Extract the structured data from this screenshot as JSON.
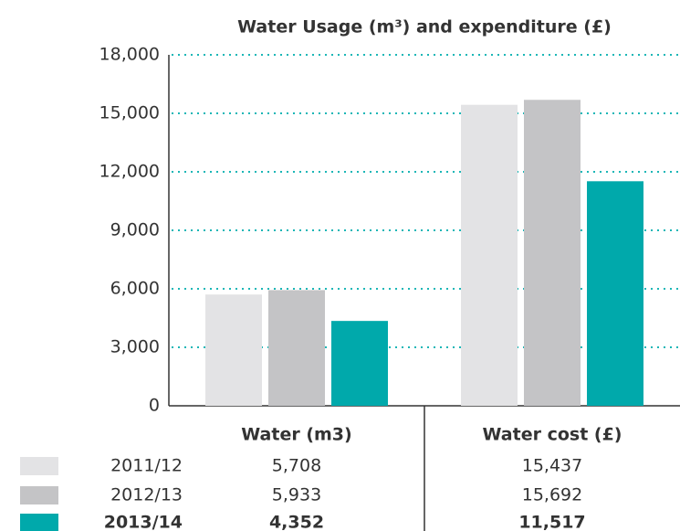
{
  "chart_data": {
    "type": "bar",
    "title": "Water Usage (m³) and expenditure (£)",
    "categories": [
      "Water (m3)",
      "Water cost (£)"
    ],
    "series": [
      {
        "name": "2011/12",
        "color": "#e3e3e5",
        "values": [
          5708,
          15437
        ],
        "value_labels": [
          "5,708",
          "15,437"
        ]
      },
      {
        "name": "2012/13",
        "color": "#c4c4c6",
        "values": [
          5933,
          15692
        ],
        "value_labels": [
          "5,933",
          "15,692"
        ]
      },
      {
        "name": "2013/14",
        "color": "#00a9ab",
        "values": [
          4352,
          11517
        ],
        "value_labels": [
          "4,352",
          "11,517"
        ]
      }
    ],
    "ylim": [
      0,
      18000
    ],
    "yticks": [
      0,
      {
        "value": 3000,
        "label": "3,000"
      },
      {
        "value": 6000,
        "label": "6,000"
      },
      {
        "value": 9000,
        "label": "9,000"
      },
      {
        "value": 12000,
        "label": "12,000"
      },
      {
        "value": 15000,
        "label": "15,000"
      },
      {
        "value": 18000,
        "label": "18,000"
      }
    ],
    "grid": true
  }
}
